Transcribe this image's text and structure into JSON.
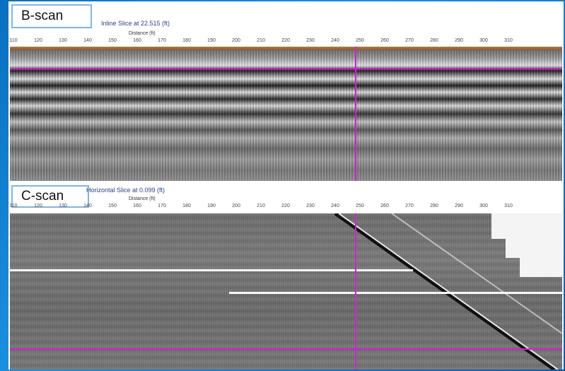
{
  "bscan": {
    "label": "B-scan",
    "title": "Inline Slice at 22.515 (ft)",
    "axis_label": "Distance (ft)"
  },
  "cscan": {
    "label": "C-scan",
    "title": "Horizontal Slice at 0.099 (ft)",
    "axis_label": "Distance (ft)"
  },
  "ticks": [
    "110",
    "120",
    "130",
    "140",
    "150",
    "160",
    "170",
    "180",
    "190",
    "200",
    "210",
    "220",
    "230",
    "240",
    "250",
    "260",
    "270",
    "280",
    "290",
    "300",
    "310"
  ],
  "colors": {
    "cursor": "#d020d0",
    "label_border": "#7fb6e6",
    "title_text": "#2a3f8f",
    "background": "#0a6fbf"
  }
}
